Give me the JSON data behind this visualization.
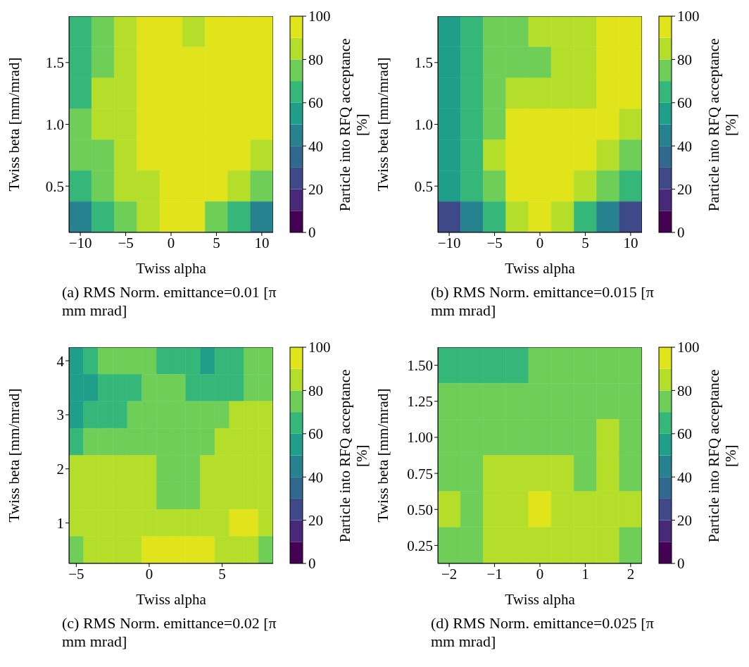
{
  "chart_data": [
    {
      "type": "heatmap",
      "xlabel": "Twiss alpha",
      "ylabel": "Twiss beta [mm/mrad]",
      "clabel": "Particle into RFQ acceptance [%]",
      "annotations": [
        "(a) RMS Norm. emittance=0.01 [π  mm mrad]"
      ],
      "clim": [
        0,
        100
      ],
      "cticks": [
        0,
        20,
        40,
        60,
        80,
        100
      ],
      "categories": [
        "−10",
        null,
        "−5",
        null,
        "0",
        null,
        "5",
        null,
        "10"
      ],
      "y_categories": [
        null,
        "1.5",
        null,
        "1.0",
        null,
        "0.5",
        null
      ],
      "cells": [
        [
          65,
          75,
          85,
          95,
          95,
          85,
          95,
          95,
          95
        ],
        [
          65,
          75,
          85,
          95,
          95,
          95,
          95,
          95,
          95
        ],
        [
          65,
          85,
          85,
          95,
          95,
          95,
          95,
          95,
          95
        ],
        [
          75,
          85,
          85,
          95,
          95,
          95,
          95,
          95,
          95
        ],
        [
          75,
          75,
          85,
          95,
          95,
          95,
          95,
          95,
          85
        ],
        [
          65,
          75,
          85,
          85,
          95,
          95,
          95,
          85,
          75
        ],
        [
          45,
          65,
          75,
          85,
          95,
          95,
          75,
          65,
          45
        ]
      ]
    },
    {
      "type": "heatmap",
      "xlabel": "Twiss alpha",
      "ylabel": "Twiss beta [mm/mrad]",
      "clabel": "Particle into RFQ acceptance [%]",
      "annotations": [
        "(b) RMS Norm. emittance=0.015 [π  mm mrad]"
      ],
      "clim": [
        0,
        100
      ],
      "cticks": [
        0,
        20,
        40,
        60,
        80,
        100
      ],
      "categories": [
        "−10",
        null,
        "−5",
        null,
        "0",
        null,
        "5",
        null,
        "10"
      ],
      "y_categories": [
        null,
        "1.5",
        null,
        "1.0",
        null,
        "0.5",
        null
      ],
      "cells": [
        [
          55,
          65,
          75,
          75,
          85,
          85,
          85,
          95,
          95
        ],
        [
          55,
          65,
          75,
          75,
          75,
          85,
          85,
          95,
          95
        ],
        [
          55,
          65,
          75,
          85,
          85,
          85,
          85,
          95,
          95
        ],
        [
          55,
          65,
          75,
          95,
          95,
          95,
          95,
          95,
          85
        ],
        [
          55,
          65,
          85,
          95,
          95,
          95,
          95,
          85,
          75
        ],
        [
          55,
          65,
          75,
          95,
          95,
          95,
          85,
          75,
          65
        ],
        [
          25,
          45,
          65,
          85,
          95,
          85,
          65,
          45,
          25
        ]
      ]
    },
    {
      "type": "heatmap",
      "xlabel": "Twiss alpha",
      "ylabel": "Twiss beta [mm/mrad]",
      "clabel": "Particle into RFQ acceptance [%]",
      "annotations": [
        "(c) RMS Norm. emittance=0.02 [π  mm mrad]"
      ],
      "clim": [
        0,
        100
      ],
      "cticks": [
        0,
        20,
        40,
        60,
        80,
        100
      ],
      "categories": [
        "−5",
        null,
        null,
        null,
        null,
        "0",
        null,
        null,
        null,
        null,
        "5",
        null,
        null,
        null
      ],
      "y_categories": [
        "4",
        null,
        "3",
        null,
        "2",
        null,
        "1",
        null
      ],
      "cells": [
        [
          55,
          65,
          75,
          75,
          75,
          75,
          65,
          65,
          65,
          55,
          65,
          65,
          75,
          75
        ],
        [
          55,
          55,
          65,
          65,
          65,
          75,
          75,
          75,
          65,
          65,
          65,
          65,
          75,
          75
        ],
        [
          55,
          65,
          65,
          65,
          75,
          75,
          75,
          75,
          75,
          75,
          75,
          85,
          85,
          85
        ],
        [
          65,
          75,
          75,
          75,
          75,
          75,
          75,
          75,
          75,
          75,
          85,
          85,
          85,
          85
        ],
        [
          85,
          85,
          85,
          85,
          85,
          85,
          75,
          75,
          75,
          85,
          85,
          85,
          85,
          85
        ],
        [
          85,
          85,
          85,
          85,
          85,
          85,
          75,
          75,
          75,
          85,
          85,
          85,
          85,
          85
        ],
        [
          85,
          85,
          85,
          85,
          85,
          85,
          85,
          85,
          85,
          85,
          85,
          95,
          95,
          85
        ],
        [
          75,
          85,
          85,
          85,
          85,
          95,
          95,
          95,
          95,
          95,
          85,
          85,
          85,
          75
        ]
      ]
    },
    {
      "type": "heatmap",
      "xlabel": "Twiss alpha",
      "ylabel": "Twiss beta [mm/mrad]",
      "clabel": "Particle into RFQ acceptance [%]",
      "annotations": [
        "(d) RMS Norm. emittance=0.025 [π  mm mrad]"
      ],
      "clim": [
        0,
        100
      ],
      "cticks": [
        0,
        20,
        40,
        60,
        80,
        100
      ],
      "categories": [
        "−2",
        null,
        "−1",
        null,
        "0",
        null,
        "1",
        null,
        "2"
      ],
      "y_categories": [
        "1.50",
        "1.25",
        "1.00",
        "0.75",
        "0.50",
        "0.25"
      ],
      "cells": [
        [
          65,
          65,
          65,
          65,
          75,
          75,
          75,
          75,
          75
        ],
        [
          75,
          75,
          75,
          75,
          75,
          75,
          75,
          75,
          75
        ],
        [
          75,
          75,
          75,
          75,
          75,
          75,
          75,
          85,
          75
        ],
        [
          75,
          75,
          85,
          85,
          85,
          85,
          75,
          85,
          75
        ],
        [
          85,
          75,
          85,
          85,
          95,
          85,
          85,
          85,
          85
        ],
        [
          75,
          75,
          85,
          85,
          85,
          85,
          85,
          85,
          75
        ]
      ]
    }
  ]
}
